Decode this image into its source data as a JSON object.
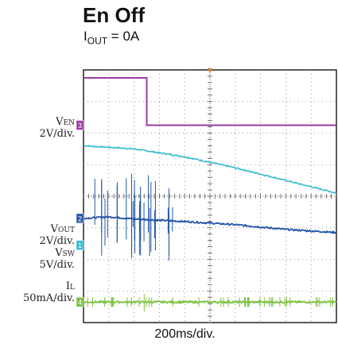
{
  "title": "En Off",
  "subtitle_main": "I",
  "subtitle_sub": "OUT",
  "subtitle_rest": " = 0A",
  "xlabel": "200ms/div.",
  "channels": {
    "ven": {
      "name": "V",
      "sub": "EN",
      "scale": "2V/div.",
      "marker": "3",
      "color": "#9b3ba2"
    },
    "vout": {
      "name": "V",
      "sub": "OUT",
      "scale": "2V/div.",
      "marker": "2",
      "color": "#2456a6"
    },
    "vsw": {
      "name": "V",
      "sub": "SW",
      "scale": "5V/div.",
      "marker": "1",
      "color": "#39bccd"
    },
    "il": {
      "name": "I",
      "sub": "L",
      "scale": "50mA/div.",
      "marker": "4",
      "color": "#7cc242"
    }
  },
  "chart_data": {
    "type": "line",
    "title": "En Off",
    "subtitle": "IOUT = 0A",
    "xlabel": "200ms/div.",
    "divisions": {
      "x": 10,
      "y": 8
    },
    "grid": true,
    "series": [
      {
        "name": "VEN",
        "scale": "2V/div.",
        "x_div": [
          0,
          2.5,
          2.5,
          10
        ],
        "y_div": [
          7.75,
          7.75,
          6.25,
          6.25
        ]
      },
      {
        "name": "VSW",
        "scale": "5V/div.",
        "x_div": [
          0,
          2,
          4,
          6,
          8,
          10
        ],
        "y_div": [
          5.6,
          5.5,
          5.25,
          4.9,
          4.5,
          4.1
        ]
      },
      {
        "name": "VOUT",
        "scale": "2V/div.",
        "x_div": [
          0,
          1,
          2,
          4,
          6,
          8,
          10
        ],
        "y_div": [
          3.3,
          3.35,
          3.28,
          3.2,
          3.1,
          2.95,
          2.85
        ]
      },
      {
        "name": "IL",
        "scale": "50mA/div.",
        "x_div": [
          0,
          10
        ],
        "y_div": [
          0.65,
          0.65
        ]
      }
    ]
  }
}
